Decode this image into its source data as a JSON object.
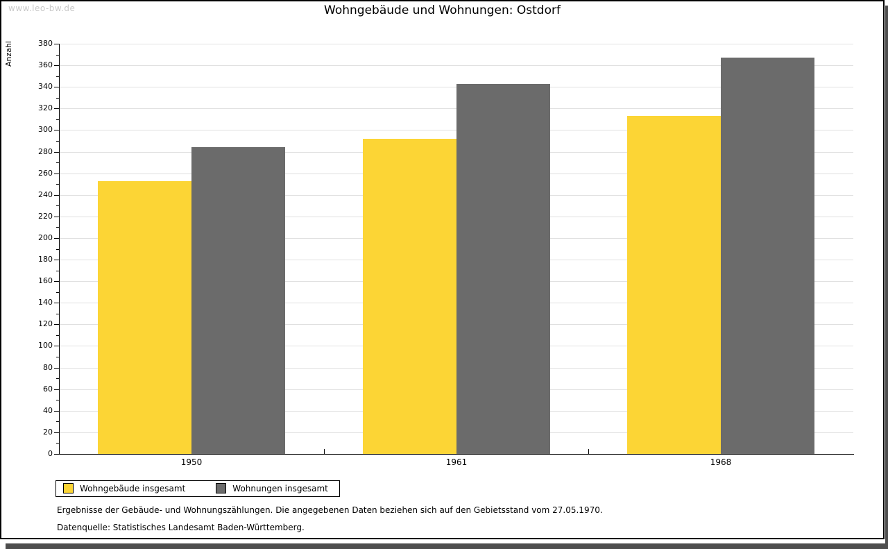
{
  "watermark": "www.leo-bw.de",
  "title": "Wohngebäude und Wohnungen: Ostdorf",
  "footnotes": [
    "Ergebnisse der Gebäude- und Wohnungszählungen. Die angegebenen Daten beziehen sich auf den Gebietsstand vom 27.05.1970.",
    "Datenquelle: Statistisches Landesamt Baden-Württemberg."
  ],
  "chart_data": {
    "type": "bar",
    "title": "Wohngebäude und Wohnungen: Ostdorf",
    "categories": [
      "1950",
      "1961",
      "1968"
    ],
    "series": [
      {
        "name": "Wohngebäude insgesamt",
        "color": "#fcd535",
        "values": [
          253,
          292,
          313
        ]
      },
      {
        "name": "Wohnungen insgesamt",
        "color": "#6b6b6b",
        "values": [
          284,
          343,
          367
        ]
      }
    ],
    "xlabel": "",
    "ylabel": "Anzahl",
    "ylim": [
      0,
      380
    ],
    "ytick_step": 20,
    "yminor_step": 10,
    "grid": true,
    "legend_position": "bottom-left"
  },
  "colors": {
    "grid": "#e0e0e0",
    "axis": "#000000",
    "shadow": "#4d4d4d",
    "watermark": "#c9c9c9"
  }
}
